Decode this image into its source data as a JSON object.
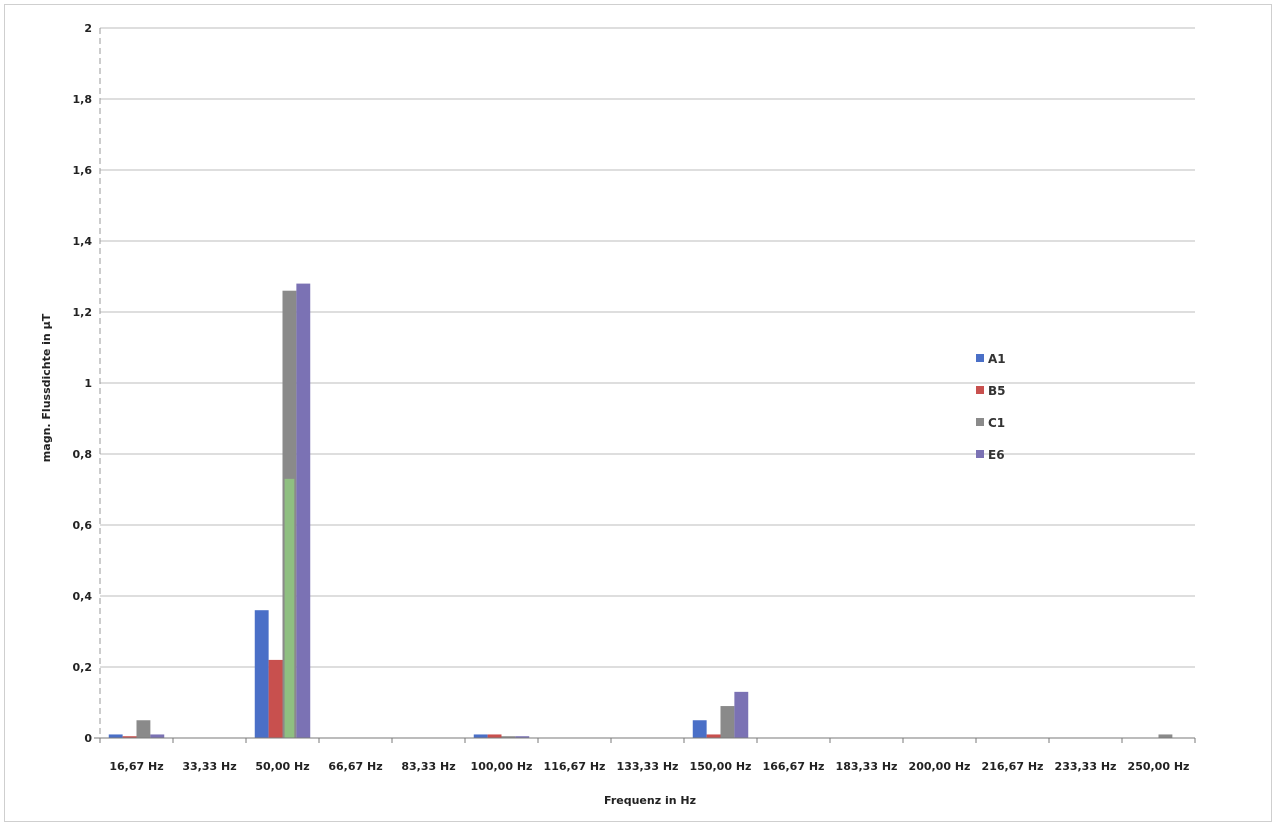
{
  "chart_data": {
    "type": "bar",
    "title": "",
    "xlabel": "Frequenz in Hz",
    "ylabel": "magn. Flussdichte in µT",
    "ylim": [
      0,
      2
    ],
    "yticks": [
      "0",
      "0,2",
      "0,4",
      "0,6",
      "0,8",
      "1",
      "1,2",
      "1,4",
      "1,6",
      "1,8",
      "2"
    ],
    "ytick_values": [
      0,
      0.2,
      0.4,
      0.6,
      0.8,
      1.0,
      1.2,
      1.4,
      1.6,
      1.8,
      2.0
    ],
    "grid": true,
    "legend_position": "right",
    "categories": [
      "16,67 Hz",
      "33,33 Hz",
      "50,00 Hz",
      "66,67 Hz",
      "83,33 Hz",
      "100,00 Hz",
      "116,67 Hz",
      "133,33 Hz",
      "150,00 Hz",
      "166,67 Hz",
      "183,33 Hz",
      "200,00 Hz",
      "216,67 Hz",
      "233,33 Hz",
      "250,00 Hz"
    ],
    "series": [
      {
        "name": "A1",
        "color": "#4a6fc7",
        "values": [
          0.01,
          0,
          0.36,
          0,
          0,
          0.01,
          0,
          0,
          0.05,
          0,
          0,
          0,
          0,
          0,
          0
        ]
      },
      {
        "name": "B5",
        "color": "#c8504e",
        "values": [
          0.005,
          0,
          0.22,
          0,
          0,
          0.01,
          0,
          0,
          0.01,
          0,
          0,
          0,
          0,
          0,
          0
        ]
      },
      {
        "name": "C1",
        "color": "#8a8a8a",
        "values": [
          0.05,
          0,
          1.26,
          0,
          0,
          0.005,
          0,
          0,
          0.09,
          0,
          0,
          0,
          0,
          0,
          0.01
        ]
      },
      {
        "name": "E6",
        "color": "#7b72b4",
        "values": [
          0.01,
          0,
          1.28,
          0,
          0,
          0.005,
          0,
          0,
          0.13,
          0,
          0,
          0,
          0,
          0,
          0
        ]
      }
    ],
    "overlay": {
      "color": "#8fc47f",
      "category_index": 2,
      "value": 0.73
    }
  }
}
